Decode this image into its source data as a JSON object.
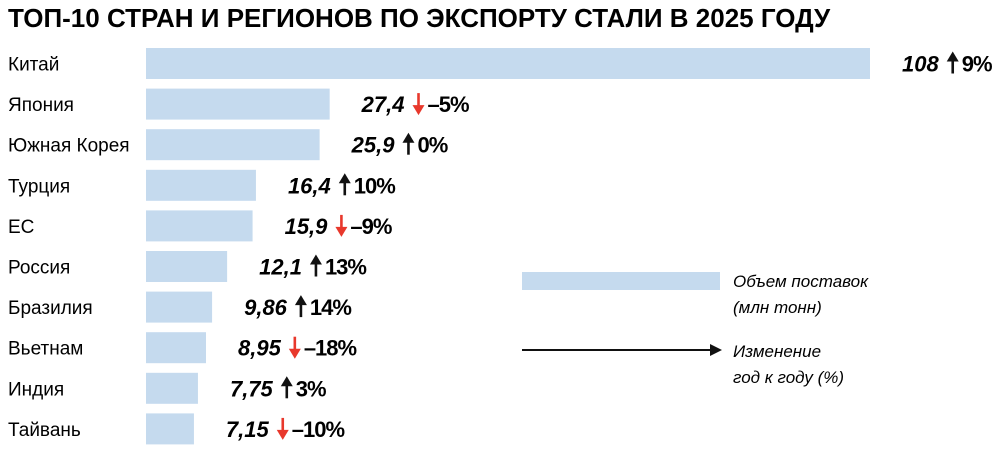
{
  "colors": {
    "bar": "#c5daee",
    "text": "#111111",
    "down_arrow": "#e8382c",
    "up_arrow": "#111111"
  },
  "chart_data": {
    "type": "bar",
    "orientation": "horizontal",
    "title": "ТОП-10 СТРАН И РЕГИОНОВ ПО ЭКСПОРТУ СТАЛИ В 2025 ГОДУ",
    "categories": [
      "Китай",
      "Япония",
      "Южная Корея",
      "Турция",
      "ЕС",
      "Россия",
      "Бразилия",
      "Вьетнам",
      "Индия",
      "Тайвань"
    ],
    "values": [
      108,
      27.4,
      25.9,
      16.4,
      15.9,
      12.1,
      9.86,
      8.95,
      7.75,
      7.15
    ],
    "value_labels": [
      "108",
      "27,4",
      "25,9",
      "16,4",
      "15,9",
      "12,1",
      "9,86",
      "8,95",
      "7,75",
      "7,15"
    ],
    "yoy_change": [
      9,
      -5,
      0,
      10,
      -9,
      13,
      14,
      -18,
      3,
      -10
    ],
    "yoy_labels": [
      "9%",
      "–5%",
      "0%",
      "10%",
      "–9%",
      "13%",
      "14%",
      "–18%",
      "3%",
      "–10%"
    ],
    "yoy_direction": [
      "up",
      "down",
      "up",
      "up",
      "down",
      "up",
      "up",
      "down",
      "up",
      "down"
    ],
    "xlim": [
      0,
      108
    ],
    "grid": false,
    "legend": {
      "placement": "right",
      "bar_label": [
        "Объем поставок",
        "(млн тонн)"
      ],
      "arrow_label": [
        "Изменение",
        "год к году (%)"
      ]
    }
  }
}
